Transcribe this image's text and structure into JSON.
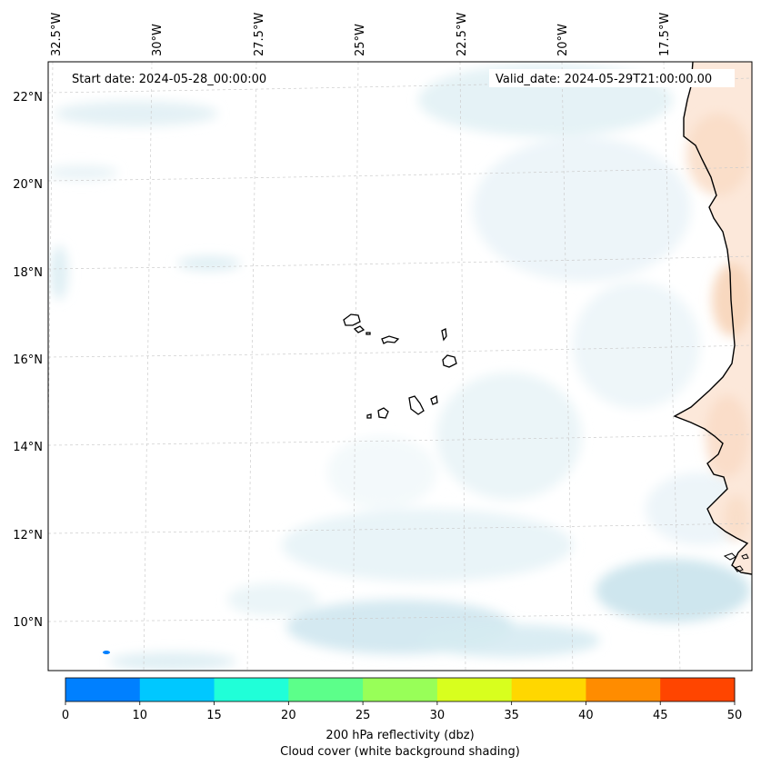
{
  "map": {
    "start_date": "Start date: 2024-05-28_00:00:00",
    "valid_date": "Valid_date: 2024-05-29T21:00:00.00",
    "lon_labels": [
      "32.5°W",
      "30°W",
      "27.5°W",
      "25°W",
      "22.5°W",
      "20°W",
      "17.5°W"
    ],
    "lat_labels": [
      "22°N",
      "20°N",
      "18°N",
      "16°N",
      "14°N",
      "12°N",
      "10°N"
    ],
    "land_color": "#fbe3d2",
    "cloud_color": "#dcedf3",
    "coast_color": "#000000",
    "grid_color": "#cfcfcf"
  },
  "colorbar": {
    "ticks": [
      "0",
      "10",
      "15",
      "20",
      "25",
      "30",
      "35",
      "40",
      "45",
      "50"
    ],
    "colors": [
      "#0080ff",
      "#00c8ff",
      "#20ffd8",
      "#5cff8a",
      "#98ff58",
      "#d8ff1e",
      "#ffd700",
      "#ff8c00",
      "#ff4500"
    ],
    "label": "200 hPa reflectivity (dbz)",
    "sublabel": "Cloud cover (white background shading)"
  }
}
